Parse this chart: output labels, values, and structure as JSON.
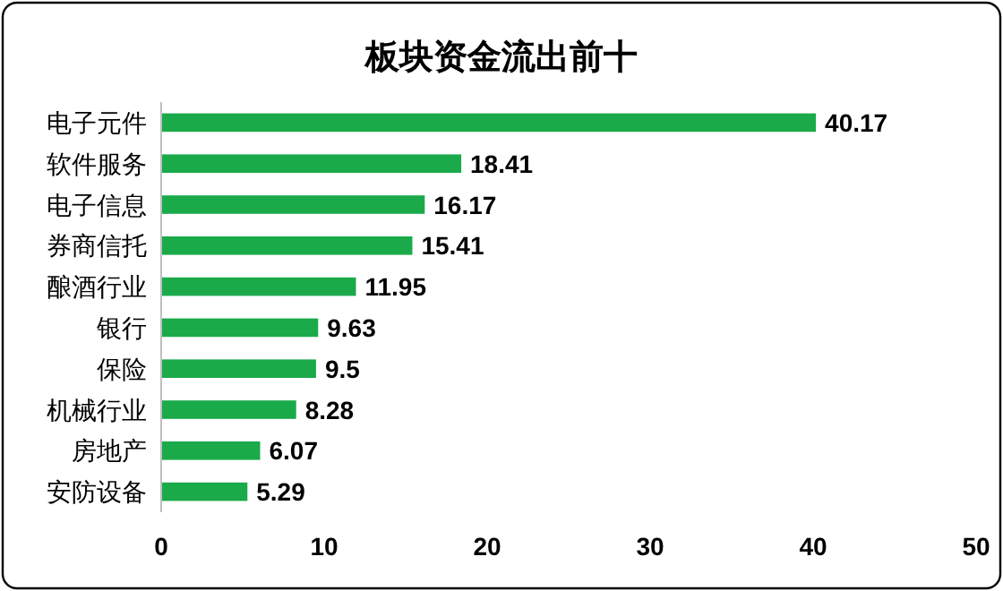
{
  "chart_data": {
    "type": "bar",
    "orientation": "horizontal",
    "title": "板块资金流出前十",
    "categories": [
      "电子元件",
      "软件服务",
      "电子信息",
      "券商信托",
      "酿酒行业",
      "银行",
      "保险",
      "机械行业",
      "房地产",
      "安防设备"
    ],
    "values": [
      40.17,
      18.41,
      16.17,
      15.41,
      11.95,
      9.63,
      9.5,
      8.28,
      6.07,
      5.29
    ],
    "color": "#1aaa4a",
    "xlim": [
      0,
      50
    ],
    "xticks": [
      0,
      10,
      20,
      30,
      40,
      50
    ],
    "data_labels": true,
    "grid": false
  }
}
